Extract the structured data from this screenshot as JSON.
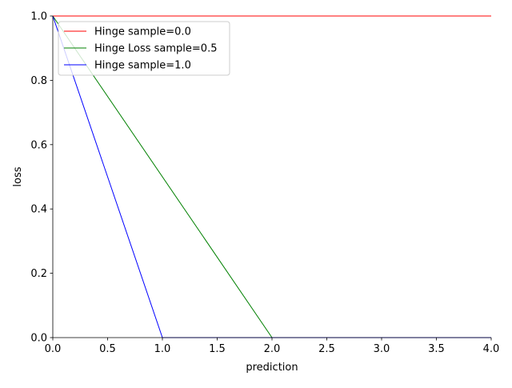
{
  "chart_data": {
    "type": "line",
    "title": "",
    "xlabel": "prediction",
    "ylabel": "loss",
    "xlim": [
      0,
      4
    ],
    "ylim": [
      0,
      1
    ],
    "xticks": [
      0.0,
      0.5,
      1.0,
      1.5,
      2.0,
      2.5,
      3.0,
      3.5,
      4.0
    ],
    "xtick_labels": [
      "0.0",
      "0.5",
      "1.0",
      "1.5",
      "2.0",
      "2.5",
      "3.0",
      "3.5",
      "4.0"
    ],
    "yticks": [
      0.0,
      0.2,
      0.4,
      0.6,
      0.8,
      1.0
    ],
    "ytick_labels": [
      "0.0",
      "0.2",
      "0.4",
      "0.6",
      "0.8",
      "1.0"
    ],
    "grid": false,
    "legend_position": "top-left",
    "series": [
      {
        "name": "Hinge sample=0.0",
        "color": "#ff0000",
        "x": [
          0,
          4
        ],
        "y": [
          1.0,
          1.0
        ]
      },
      {
        "name": "Hinge Loss sample=0.5",
        "color": "#008000",
        "x": [
          0,
          2,
          4
        ],
        "y": [
          1.0,
          0.0,
          0.0
        ]
      },
      {
        "name": "Hinge sample=1.0",
        "color": "#0000ff",
        "x": [
          0,
          1,
          4
        ],
        "y": [
          1.0,
          0.0,
          0.0
        ]
      }
    ]
  }
}
